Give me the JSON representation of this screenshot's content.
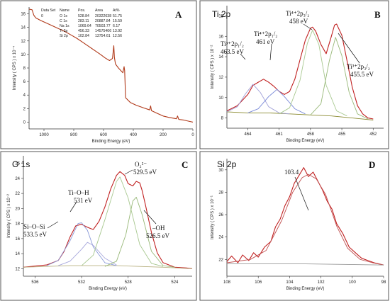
{
  "chart_data": [
    {
      "type": "line",
      "panel": "A",
      "xlabel": "Binding Energy (eV)",
      "ylabel": "Intensity ( CPS ) x 10⁻⁴",
      "xlim": [
        1100,
        0
      ],
      "ylim": [
        -1,
        17
      ],
      "xticks": [
        1000,
        800,
        600,
        400,
        200,
        0
      ],
      "yticks": [
        0,
        2,
        4,
        6,
        8,
        10,
        12,
        14,
        16
      ],
      "table": {
        "headers": [
          "Data Set",
          "Name",
          "Pos.",
          "Area",
          "At%"
        ],
        "rows": [
          [
            "0",
            "O 1s",
            "528.84",
            "20322638",
            "51.75"
          ],
          [
            "",
            "C 1s",
            "283.11",
            "20887.84",
            "15.59"
          ],
          [
            "",
            "Na 1s",
            "1069.64",
            "70503.77",
            "6.17"
          ],
          [
            "",
            "Ti 2p",
            "456.33",
            "14575406",
            "13.92"
          ],
          [
            "",
            "Si 2p",
            "102.84",
            "13754.61",
            "12.56"
          ]
        ]
      },
      "series": [
        {
          "color": "#b03818",
          "points": [
            [
              1100,
              16.7
            ],
            [
              1080,
              16.6
            ],
            [
              1068,
              15.8
            ],
            [
              1055,
              15.4
            ],
            [
              1020,
              15.0
            ],
            [
              980,
              14.6
            ],
            [
              940,
              14.2
            ],
            [
              900,
              13.8
            ],
            [
              860,
              13.4
            ],
            [
              820,
              12.9
            ],
            [
              780,
              12.4
            ],
            [
              740,
              11.8
            ],
            [
              700,
              11.2
            ],
            [
              660,
              10.6
            ],
            [
              620,
              10.0
            ],
            [
              590,
              9.5
            ],
            [
              560,
              9.1
            ],
            [
              540,
              9.4
            ],
            [
              531,
              11.3
            ],
            [
              527,
              9.6
            ],
            [
              520,
              8.6
            ],
            [
              500,
              8.0
            ],
            [
              470,
              7.3
            ],
            [
              462,
              8.2
            ],
            [
              458,
              7.6
            ],
            [
              452,
              3.6
            ],
            [
              420,
              2.9
            ],
            [
              380,
              2.5
            ],
            [
              330,
              2.1
            ],
            [
              290,
              1.8
            ],
            [
              284,
              2.4
            ],
            [
              278,
              1.7
            ],
            [
              240,
              1.3
            ],
            [
              200,
              0.9
            ],
            [
              160,
              0.7
            ],
            [
              110,
              0.5
            ],
            [
              103,
              0.9
            ],
            [
              95,
              0.4
            ],
            [
              60,
              0.3
            ],
            [
              20,
              0.1
            ],
            [
              0,
              0.0
            ]
          ]
        }
      ]
    },
    {
      "type": "line",
      "panel": "B",
      "title": "Ti 2p",
      "xlabel": "Binding Energy (eV)",
      "ylabel": "Intensity ( CPS ) x 10⁻²",
      "xlim": [
        466,
        451
      ],
      "ylim": [
        7,
        19
      ],
      "xticks": [
        464,
        461,
        458,
        455,
        452
      ],
      "xticklabels": [
        "464",
        "461",
        "458",
        "455",
        "452"
      ],
      "yticks": [
        8,
        10,
        12,
        14,
        16,
        18
      ],
      "annotations": [
        "Ti³⁺2p₁/₂",
        "463.5 eV",
        "Ti⁴⁺2p₁/₂",
        "461 eV",
        "Ti⁴⁺2p₃/₂",
        "458 eV",
        "Ti³⁺2p₃/₂",
        "455.5 eV"
      ],
      "series": [
        {
          "color": "#c02020",
          "points": [
            [
              466,
              8.7
            ],
            [
              465,
              9.2
            ],
            [
              464,
              10.3
            ],
            [
              463.5,
              11.2
            ],
            [
              463,
              11.5
            ],
            [
              462.5,
              11.8
            ],
            [
              462,
              11.5
            ],
            [
              461.5,
              11.1
            ],
            [
              461,
              10.6
            ],
            [
              460.5,
              10.3
            ],
            [
              460,
              10.6
            ],
            [
              459.5,
              11.8
            ],
            [
              459,
              13.7
            ],
            [
              458.5,
              15.6
            ],
            [
              458,
              16.8
            ],
            [
              457.8,
              16.9
            ],
            [
              457.5,
              16.5
            ],
            [
              457,
              15.2
            ],
            [
              456.5,
              14.3
            ],
            [
              456,
              16.0
            ],
            [
              455.7,
              17.1
            ],
            [
              455.5,
              17.2
            ],
            [
              455,
              16.1
            ],
            [
              454.5,
              13.6
            ],
            [
              454,
              11.0
            ],
            [
              453.5,
              9.2
            ],
            [
              453,
              8.4
            ],
            [
              452.5,
              8.0
            ],
            [
              452,
              7.9
            ]
          ]
        },
        {
          "color": "#8a8a30",
          "points": [
            [
              466,
              8.6
            ],
            [
              464,
              8.5
            ],
            [
              462,
              8.5
            ],
            [
              460,
              8.4
            ],
            [
              458,
              8.3
            ],
            [
              456,
              8.2
            ],
            [
              454,
              8.0
            ],
            [
              452,
              7.8
            ]
          ]
        },
        {
          "color": "#a0a0d8",
          "points": [
            [
              466,
              8.6
            ],
            [
              465,
              9.1
            ],
            [
              464.2,
              10.4
            ],
            [
              463.5,
              11.3
            ],
            [
              462.8,
              10.5
            ],
            [
              462,
              9.1
            ],
            [
              461,
              8.5
            ],
            [
              460,
              8.4
            ]
          ]
        },
        {
          "color": "#7a8ad8",
          "points": [
            [
              464,
              8.5
            ],
            [
              463,
              8.9
            ],
            [
              462,
              10.1
            ],
            [
              461.2,
              10.8
            ],
            [
              460.5,
              10.1
            ],
            [
              459.5,
              8.9
            ],
            [
              458.5,
              8.4
            ]
          ]
        },
        {
          "color": "#a8c890",
          "points": [
            [
              461,
              8.4
            ],
            [
              460,
              9.0
            ],
            [
              459,
              11.7
            ],
            [
              458.3,
              15.3
            ],
            [
              457.8,
              16.6
            ],
            [
              457.2,
              15.2
            ],
            [
              456.5,
              11.2
            ],
            [
              455.5,
              8.7
            ],
            [
              454.5,
              8.2
            ]
          ]
        },
        {
          "color": "#98b878",
          "points": [
            [
              458,
              8.3
            ],
            [
              457,
              9.4
            ],
            [
              456.2,
              13.6
            ],
            [
              455.6,
              15.9
            ],
            [
              455,
              14.1
            ],
            [
              454.3,
              10.5
            ],
            [
              453.5,
              8.4
            ],
            [
              452.5,
              7.9
            ]
          ]
        }
      ]
    },
    {
      "type": "line",
      "panel": "C",
      "title": "O 1s",
      "xlabel": "Binding Energy (eV)",
      "ylabel": "Intensity ( CPS ) x 10⁻²",
      "xlim": [
        537,
        522.5
      ],
      "ylim": [
        11,
        27
      ],
      "xticks": [
        536,
        532,
        528,
        524
      ],
      "yticks": [
        12,
        14,
        16,
        18,
        20,
        22,
        24,
        26
      ],
      "annotations": [
        "O₂²⁻",
        "529.5 eV",
        "Ti–O–H",
        "531 eV",
        "Si–O–Si",
        "533.5 eV",
        "–OH",
        "526.5 eV"
      ],
      "series": [
        {
          "color": "#c02020",
          "points": [
            [
              537,
              12.2
            ],
            [
              535,
              12.5
            ],
            [
              534,
              13.1
            ],
            [
              533.5,
              14.3
            ],
            [
              533,
              16.2
            ],
            [
              532.5,
              17.7
            ],
            [
              532,
              17.9
            ],
            [
              531.5,
              17.5
            ],
            [
              531,
              17.2
            ],
            [
              530.5,
              18.3
            ],
            [
              530,
              20.2
            ],
            [
              529.5,
              22.6
            ],
            [
              529,
              24.4
            ],
            [
              528.7,
              24.9
            ],
            [
              528.3,
              24.4
            ],
            [
              528,
              23.3
            ],
            [
              527.6,
              23.0
            ],
            [
              527.3,
              23.6
            ],
            [
              527,
              23.4
            ],
            [
              526.8,
              22.4
            ],
            [
              526.5,
              20.4
            ],
            [
              526,
              16.8
            ],
            [
              525.5,
              14.1
            ],
            [
              525,
              12.8
            ],
            [
              524,
              12.2
            ],
            [
              523,
              12.1
            ],
            [
              522.5,
              12.0
            ]
          ]
        },
        {
          "color": "#b8b080",
          "points": [
            [
              537,
              12.2
            ],
            [
              535,
              12.3
            ],
            [
              533,
              12.4
            ],
            [
              531,
              12.4
            ],
            [
              529,
              12.4
            ],
            [
              527,
              12.3
            ],
            [
              525,
              12.2
            ],
            [
              522.5,
              12.0
            ]
          ]
        },
        {
          "color": "#8a9ad8",
          "points": [
            [
              535,
              12.4
            ],
            [
              534,
              13.1
            ],
            [
              533,
              15.7
            ],
            [
              532.3,
              18.0
            ],
            [
              532,
              18.1
            ],
            [
              531.5,
              17.1
            ],
            [
              531,
              14.9
            ],
            [
              530,
              12.8
            ],
            [
              529,
              12.4
            ]
          ]
        },
        {
          "color": "#a8a8dc",
          "points": [
            [
              534,
              12.4
            ],
            [
              533,
              13.0
            ],
            [
              532,
              14.6
            ],
            [
              531.5,
              15.5
            ],
            [
              531,
              15.1
            ],
            [
              530,
              13.4
            ],
            [
              529,
              12.5
            ]
          ]
        },
        {
          "color": "#a8c890",
          "points": [
            [
              532,
              12.4
            ],
            [
              531,
              13.8
            ],
            [
              530,
              18.5
            ],
            [
              529,
              23.6
            ],
            [
              528.7,
              24.2
            ],
            [
              528,
              21.4
            ],
            [
              527,
              15.2
            ],
            [
              526,
              12.7
            ],
            [
              525,
              12.3
            ]
          ]
        },
        {
          "color": "#98b878",
          "points": [
            [
              530,
              12.3
            ],
            [
              529,
              13.0
            ],
            [
              528.2,
              16.5
            ],
            [
              527.6,
              21.0
            ],
            [
              527.3,
              21.5
            ],
            [
              526.8,
              19.2
            ],
            [
              526,
              14.3
            ],
            [
              525,
              12.4
            ],
            [
              524,
              12.2
            ]
          ]
        }
      ]
    },
    {
      "type": "line",
      "panel": "D",
      "title": "Si 2p",
      "xlabel": "Binding Energy (eV)",
      "ylabel": "Intensity ( CPS ) x 10⁻¹",
      "xlim": [
        108,
        98
      ],
      "ylim": [
        20.5,
        31
      ],
      "xticks": [
        108,
        106,
        104,
        102,
        100,
        98
      ],
      "yticks": [
        22,
        24,
        26,
        28,
        30
      ],
      "annotations": [
        "103.4"
      ],
      "series": [
        {
          "color": "#c02020",
          "points": [
            [
              108,
              21.8
            ],
            [
              107.7,
              22.3
            ],
            [
              107.3,
              21.7
            ],
            [
              107,
              22.4
            ],
            [
              106.6,
              21.9
            ],
            [
              106.3,
              22.6
            ],
            [
              106,
              22.2
            ],
            [
              105.6,
              23.1
            ],
            [
              105.2,
              23.6
            ],
            [
              104.9,
              24.9
            ],
            [
              104.6,
              25.6
            ],
            [
              104.3,
              26.8
            ],
            [
              104,
              27.6
            ],
            [
              103.7,
              28.8
            ],
            [
              103.4,
              29.5
            ],
            [
              103.1,
              30.2
            ],
            [
              102.8,
              29.4
            ],
            [
              102.5,
              29.8
            ],
            [
              102.2,
              29.0
            ],
            [
              101.9,
              28.2
            ],
            [
              101.6,
              27.2
            ],
            [
              101.3,
              26.5
            ],
            [
              101,
              25.2
            ],
            [
              100.6,
              24.3
            ],
            [
              100.2,
              23.1
            ],
            [
              99.8,
              22.6
            ],
            [
              99.4,
              22.1
            ],
            [
              99,
              21.9
            ],
            [
              98.6,
              21.7
            ],
            [
              98,
              21.5
            ]
          ]
        },
        {
          "color": "#c05050",
          "points": [
            [
              108,
              21.7
            ],
            [
              106.5,
              22.0
            ],
            [
              105.5,
              22.8
            ],
            [
              104.5,
              25.5
            ],
            [
              103.8,
              28.0
            ],
            [
              103.2,
              29.3
            ],
            [
              102.8,
              29.6
            ],
            [
              102.3,
              29.2
            ],
            [
              101.7,
              27.8
            ],
            [
              101,
              25.0
            ],
            [
              100.3,
              23.0
            ],
            [
              99.5,
              22.0
            ],
            [
              98.7,
              21.7
            ],
            [
              98,
              21.5
            ]
          ]
        },
        {
          "color": "#999999",
          "points": [
            [
              108,
              21.6
            ],
            [
              103,
              21.6
            ],
            [
              98,
              21.5
            ]
          ]
        }
      ]
    }
  ]
}
